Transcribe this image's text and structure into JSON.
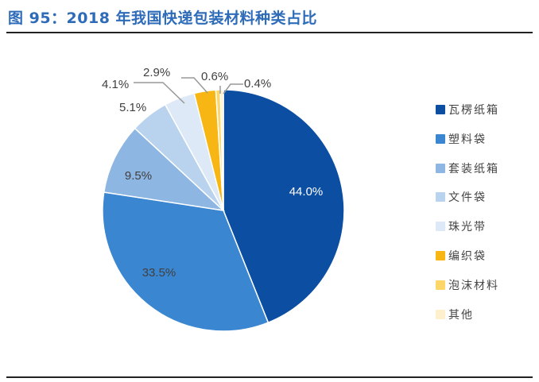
{
  "title": "图 95：2018 年我国快递包装材料种类占比",
  "chart_data": {
    "type": "pie",
    "categories": [
      "瓦楞纸箱",
      "塑料袋",
      "套装纸箱",
      "文件袋",
      "珠光带",
      "编织袋",
      "泡沫材料",
      "其他"
    ],
    "values": [
      44.0,
      33.5,
      9.5,
      5.1,
      4.1,
      2.9,
      0.6,
      0.4
    ],
    "labels": [
      "44.0%",
      "33.5%",
      "9.5%",
      "5.1%",
      "4.1%",
      "2.9%",
      "0.6%",
      "0.4%"
    ],
    "colors": [
      "#0b4ea2",
      "#3a86d0",
      "#8db6e2",
      "#b9d3ee",
      "#dde9f6",
      "#f7b614",
      "#fdd66a",
      "#fef0cd"
    ],
    "legend_position": "right"
  }
}
